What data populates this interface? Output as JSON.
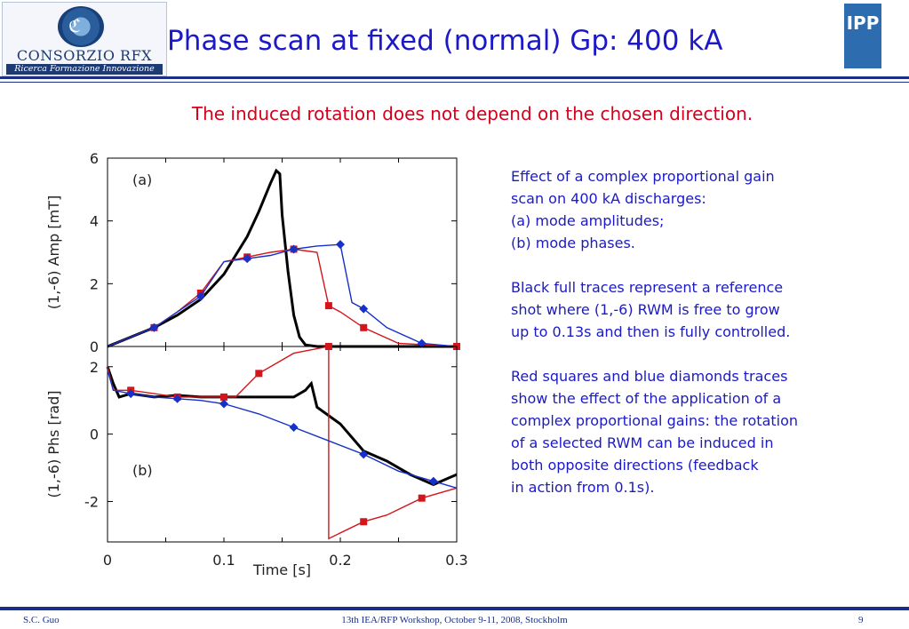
{
  "header": {
    "title": "Phase scan at fixed (normal) Gp: 400 kA",
    "logo_left": {
      "name": "CONSORZIO RFX",
      "tagline": "Ricerca Formazione Innovazione"
    },
    "logo_right": {
      "name": "IPP"
    },
    "colors": {
      "title": "#1b19c8",
      "rule": "#1b2f86"
    }
  },
  "subtitle": "The induced rotation does not depend on the chosen direction.",
  "body_text": {
    "para1": [
      "Effect of a complex proportional gain",
      "scan on 400 kA discharges:",
      "(a) mode amplitudes;",
      "(b) mode phases."
    ],
    "para2": [
      "Black full traces represent a reference",
      "shot where (1,-6) RWM is free to grow",
      "up to 0.13s and then is fully controlled."
    ],
    "para3": [
      "Red squares and blue diamonds traces",
      "show the effect of the application of a",
      "complex proportional gains: the rotation",
      "of a selected RWM can be induced in",
      "both opposite directions (feedback",
      "in action from 0.1s)."
    ]
  },
  "footer": {
    "left": "S.C. Guo",
    "center": "13th IEA/RFP Workshop, October 9-11, 2008, Stockholm",
    "page": "9"
  },
  "chart_data": [
    {
      "type": "line",
      "panel_label": "(a)",
      "ylabel": "(1,-6) Amp [mT]",
      "xlim": [
        0,
        0.3
      ],
      "ylim": [
        0,
        6
      ],
      "yticks": [
        0,
        2,
        4,
        6
      ],
      "series": [
        {
          "color": "#000000",
          "marker": "none",
          "x": [
            0,
            0.02,
            0.04,
            0.06,
            0.08,
            0.1,
            0.11,
            0.12,
            0.13,
            0.14,
            0.145,
            0.148,
            0.15,
            0.155,
            0.16,
            0.165,
            0.17,
            0.18,
            0.2,
            0.3
          ],
          "y": [
            0,
            0.3,
            0.6,
            1.0,
            1.5,
            2.3,
            2.9,
            3.5,
            4.3,
            5.2,
            5.6,
            5.5,
            4.2,
            2.4,
            1.0,
            0.3,
            0.05,
            0,
            0,
            0
          ]
        },
        {
          "color": "#d4161c",
          "marker": "square",
          "x": [
            0,
            0.02,
            0.04,
            0.06,
            0.08,
            0.1,
            0.12,
            0.14,
            0.16,
            0.18,
            0.19,
            0.2,
            0.22,
            0.25,
            0.3
          ],
          "y": [
            0,
            0.3,
            0.6,
            1.1,
            1.7,
            2.7,
            2.85,
            3.0,
            3.1,
            3.0,
            1.3,
            1.1,
            0.6,
            0.1,
            0
          ]
        },
        {
          "color": "#1630c8",
          "marker": "diamond",
          "x": [
            0,
            0.02,
            0.04,
            0.06,
            0.08,
            0.1,
            0.12,
            0.14,
            0.16,
            0.18,
            0.2,
            0.21,
            0.22,
            0.24,
            0.27,
            0.3
          ],
          "y": [
            0,
            0.3,
            0.6,
            1.1,
            1.6,
            2.7,
            2.8,
            2.9,
            3.1,
            3.2,
            3.25,
            1.4,
            1.2,
            0.6,
            0.1,
            0
          ]
        }
      ]
    },
    {
      "type": "line",
      "panel_label": "(b)",
      "xlabel": "Time [s]",
      "ylabel": "(1,-6) Phs [rad]",
      "xlim": [
        0,
        0.3
      ],
      "ylim": [
        -3.2,
        2.6
      ],
      "xticks": [
        0,
        0.1,
        0.2,
        0.3
      ],
      "yticks": [
        -2,
        0,
        2
      ],
      "series": [
        {
          "color": "#000000",
          "marker": "none",
          "x": [
            0,
            0.005,
            0.01,
            0.02,
            0.04,
            0.06,
            0.08,
            0.1,
            0.12,
            0.14,
            0.16,
            0.17,
            0.175,
            0.18,
            0.2,
            0.22,
            0.24,
            0.26,
            0.28,
            0.3
          ],
          "y": [
            2.0,
            1.5,
            1.1,
            1.2,
            1.1,
            1.15,
            1.1,
            1.1,
            1.1,
            1.1,
            1.1,
            1.3,
            1.5,
            0.8,
            0.3,
            -0.5,
            -0.8,
            -1.2,
            -1.5,
            -1.2
          ]
        },
        {
          "color": "#d4161c",
          "marker": "square",
          "x": [
            0,
            0.005,
            0.02,
            0.04,
            0.06,
            0.08,
            0.1,
            0.11,
            0.13,
            0.16,
            0.19,
            0.19,
            0.22,
            0.24,
            0.27,
            0.3
          ],
          "y": [
            2.0,
            1.3,
            1.3,
            1.2,
            1.1,
            1.1,
            1.1,
            1.1,
            1.8,
            2.4,
            2.6,
            -3.1,
            -2.6,
            -2.4,
            -1.9,
            -1.6
          ]
        },
        {
          "color": "#1630c8",
          "marker": "diamond",
          "x": [
            0,
            0.005,
            0.02,
            0.04,
            0.06,
            0.08,
            0.1,
            0.13,
            0.16,
            0.19,
            0.22,
            0.25,
            0.28,
            0.3
          ],
          "y": [
            1.9,
            1.3,
            1.2,
            1.1,
            1.05,
            1.0,
            0.9,
            0.6,
            0.2,
            -0.2,
            -0.6,
            -1.1,
            -1.4,
            -1.6
          ]
        }
      ]
    }
  ]
}
